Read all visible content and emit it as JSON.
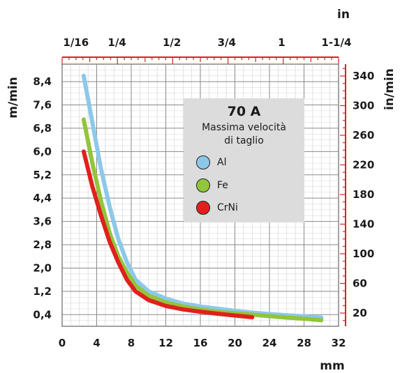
{
  "chart_data": {
    "type": "line",
    "title": "70 A",
    "subtitle_lines": [
      "Massima velocità",
      "di taglio"
    ],
    "x_bottom": {
      "label": "mm",
      "ticks": [
        0,
        4,
        8,
        12,
        16,
        20,
        24,
        28,
        32
      ],
      "range": [
        0,
        32
      ]
    },
    "x_top": {
      "label": "in",
      "ticks": [
        "1/16",
        "1/4",
        "1/2",
        "3/4",
        "1",
        "1-1/4"
      ],
      "tick_mm": [
        1.6,
        6.35,
        12.7,
        19.05,
        25.4,
        31.75
      ]
    },
    "y_left": {
      "label": "m/min",
      "ticks": [
        "0,4",
        "1,2",
        "2,0",
        "2,8",
        "3,6",
        "4,4",
        "5,2",
        "6,0",
        "6,8",
        "7,6",
        "8,4"
      ],
      "tick_values": [
        0.4,
        1.2,
        2.0,
        2.8,
        3.6,
        4.4,
        5.2,
        6.0,
        6.8,
        7.6,
        8.4
      ],
      "range": [
        0,
        9.0
      ]
    },
    "y_right": {
      "label": "in/min",
      "ticks": [
        "20",
        "60",
        "100",
        "140",
        "180",
        "220",
        "260",
        "300",
        "340"
      ],
      "tick_values": [
        20,
        60,
        100,
        140,
        180,
        220,
        260,
        300,
        340
      ]
    },
    "legend_position": "top-right",
    "series": [
      {
        "name": "Al",
        "color": "#8cc8ea",
        "points": [
          [
            2.5,
            8.6
          ],
          [
            3.5,
            7.0
          ],
          [
            4.5,
            5.4
          ],
          [
            5.5,
            4.1
          ],
          [
            6.5,
            3.0
          ],
          [
            7.5,
            2.2
          ],
          [
            8.5,
            1.6
          ],
          [
            10,
            1.2
          ],
          [
            12,
            0.95
          ],
          [
            14,
            0.78
          ],
          [
            16,
            0.68
          ],
          [
            18,
            0.6
          ],
          [
            20,
            0.53
          ],
          [
            22,
            0.47
          ],
          [
            24,
            0.42
          ],
          [
            26,
            0.38
          ],
          [
            28,
            0.34
          ],
          [
            30,
            0.3
          ]
        ]
      },
      {
        "name": "Fe",
        "color": "#92c43c",
        "points": [
          [
            2.5,
            7.1
          ],
          [
            3.5,
            5.6
          ],
          [
            4.5,
            4.3
          ],
          [
            5.5,
            3.2
          ],
          [
            6.5,
            2.4
          ],
          [
            7.5,
            1.85
          ],
          [
            8.5,
            1.4
          ],
          [
            10,
            1.05
          ],
          [
            12,
            0.82
          ],
          [
            14,
            0.68
          ],
          [
            16,
            0.58
          ],
          [
            18,
            0.5
          ],
          [
            20,
            0.45
          ],
          [
            22,
            0.4
          ],
          [
            24,
            0.35
          ],
          [
            26,
            0.3
          ],
          [
            28,
            0.26
          ],
          [
            30,
            0.21
          ]
        ]
      },
      {
        "name": "CrNi",
        "color": "#e0201c",
        "points": [
          [
            2.5,
            6.0
          ],
          [
            3.5,
            4.8
          ],
          [
            4.5,
            3.8
          ],
          [
            5.5,
            2.9
          ],
          [
            6.5,
            2.2
          ],
          [
            7.5,
            1.6
          ],
          [
            8.5,
            1.2
          ],
          [
            10,
            0.9
          ],
          [
            12,
            0.7
          ],
          [
            14,
            0.58
          ],
          [
            16,
            0.5
          ],
          [
            18,
            0.43
          ],
          [
            20,
            0.37
          ],
          [
            22,
            0.31
          ]
        ]
      }
    ],
    "grid": true
  }
}
